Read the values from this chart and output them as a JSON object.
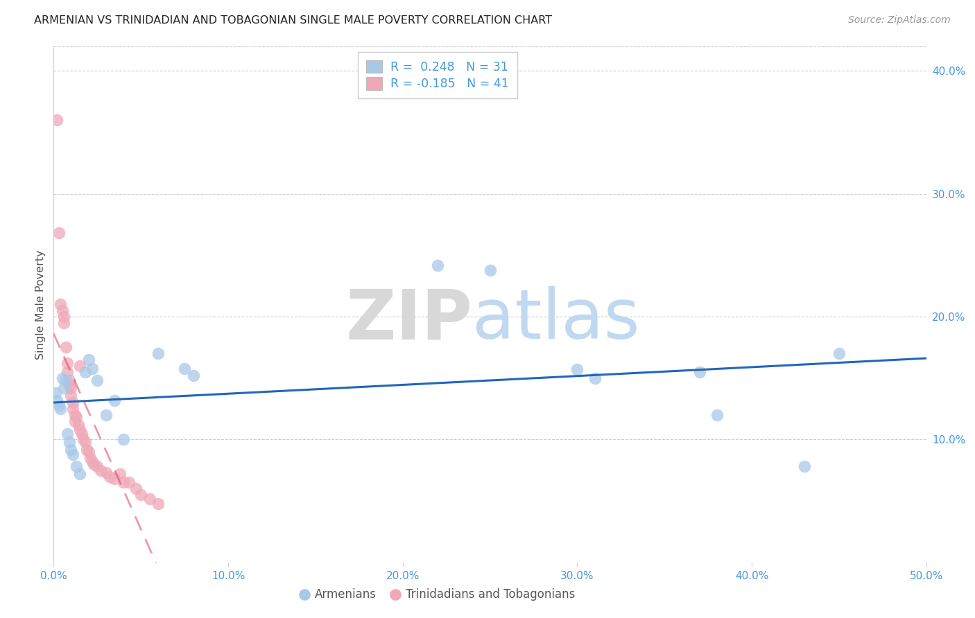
{
  "title": "ARMENIAN VS TRINIDADIAN AND TOBAGONIAN SINGLE MALE POVERTY CORRELATION CHART",
  "source": "Source: ZipAtlas.com",
  "ylabel": "Single Male Poverty",
  "xlim": [
    0.0,
    0.5
  ],
  "ylim": [
    0.0,
    0.42
  ],
  "xticks": [
    0.0,
    0.1,
    0.2,
    0.3,
    0.4,
    0.5
  ],
  "xtick_labels": [
    "0.0%",
    "10.0%",
    "20.0%",
    "30.0%",
    "40.0%",
    "50.0%"
  ],
  "yticks_right": [
    0.1,
    0.2,
    0.3,
    0.4
  ],
  "ytick_right_labels": [
    "10.0%",
    "20.0%",
    "30.0%",
    "40.0%"
  ],
  "legend_label1": "R =  0.248   N = 31",
  "legend_label2": "R = -0.185   N = 41",
  "legend_label_armenians": "Armenians",
  "legend_label_tt": "Trinidadians and Tobagonians",
  "blue_scatter_color": "#a8c8e8",
  "pink_scatter_color": "#f0a8b8",
  "blue_line_color": "#2266bb",
  "pink_line_color": "#dd4466",
  "background_color": "#ffffff",
  "grid_color": "#cccccc",
  "axis_color": "#4499dd",
  "armenians_x": [
    0.001,
    0.002,
    0.003,
    0.004,
    0.005,
    0.006,
    0.007,
    0.008,
    0.009,
    0.01,
    0.011,
    0.013,
    0.015,
    0.018,
    0.02,
    0.022,
    0.025,
    0.03,
    0.035,
    0.04,
    0.06,
    0.075,
    0.08,
    0.22,
    0.25,
    0.3,
    0.31,
    0.37,
    0.38,
    0.43,
    0.45
  ],
  "armenians_y": [
    0.138,
    0.132,
    0.128,
    0.125,
    0.15,
    0.142,
    0.148,
    0.105,
    0.098,
    0.092,
    0.088,
    0.078,
    0.072,
    0.155,
    0.165,
    0.158,
    0.148,
    0.12,
    0.132,
    0.1,
    0.17,
    0.158,
    0.152,
    0.242,
    0.238,
    0.157,
    0.15,
    0.155,
    0.12,
    0.078,
    0.17
  ],
  "tt_x": [
    0.002,
    0.003,
    0.004,
    0.005,
    0.006,
    0.006,
    0.007,
    0.008,
    0.008,
    0.009,
    0.009,
    0.01,
    0.01,
    0.011,
    0.011,
    0.012,
    0.012,
    0.013,
    0.014,
    0.015,
    0.015,
    0.016,
    0.017,
    0.018,
    0.019,
    0.02,
    0.021,
    0.022,
    0.023,
    0.025,
    0.027,
    0.03,
    0.032,
    0.035,
    0.038,
    0.04,
    0.043,
    0.047,
    0.05,
    0.055,
    0.06
  ],
  "tt_y": [
    0.36,
    0.268,
    0.21,
    0.205,
    0.2,
    0.195,
    0.175,
    0.162,
    0.155,
    0.148,
    0.144,
    0.142,
    0.136,
    0.13,
    0.125,
    0.12,
    0.115,
    0.118,
    0.112,
    0.108,
    0.16,
    0.105,
    0.1,
    0.098,
    0.092,
    0.09,
    0.085,
    0.082,
    0.08,
    0.078,
    0.075,
    0.073,
    0.07,
    0.068,
    0.072,
    0.065,
    0.065,
    0.06,
    0.055,
    0.052,
    0.048
  ],
  "watermark_zip_color": "#d8d8d8",
  "watermark_atlas_color": "#c0d8f0"
}
